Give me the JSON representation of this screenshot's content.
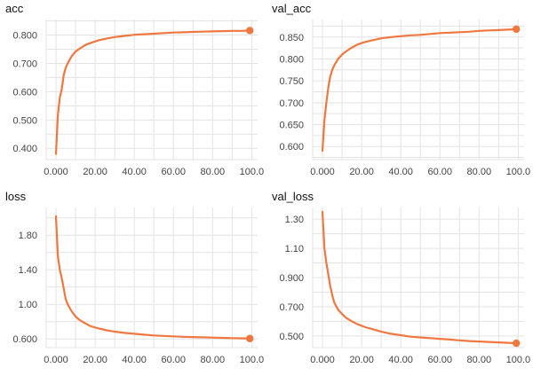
{
  "chart_data": [
    {
      "type": "line",
      "title": "acc",
      "xlabel": "",
      "ylabel": "",
      "xlim": [
        -5,
        103
      ],
      "ylim": [
        0.36,
        0.855
      ],
      "xticks": [
        0,
        20,
        40,
        60,
        80,
        100
      ],
      "xtick_labels": [
        "0.000",
        "20.00",
        "40.00",
        "60.00",
        "80.00",
        "100.0"
      ],
      "yticks": [
        0.4,
        0.5,
        0.6,
        0.7,
        0.8
      ],
      "ytick_labels": [
        "0.400",
        "0.500",
        "0.600",
        "0.700",
        "0.800"
      ],
      "grid": true,
      "color": "#f0773f",
      "series": [
        {
          "x": [
            0,
            1,
            2,
            3,
            4,
            5,
            6,
            8,
            10,
            12,
            15,
            18,
            22,
            26,
            30,
            35,
            40,
            45,
            50,
            55,
            60,
            65,
            70,
            75,
            80,
            85,
            90,
            95,
            99
          ],
          "y": [
            0.38,
            0.52,
            0.58,
            0.61,
            0.66,
            0.685,
            0.7,
            0.725,
            0.742,
            0.752,
            0.765,
            0.773,
            0.782,
            0.788,
            0.793,
            0.797,
            0.801,
            0.803,
            0.805,
            0.807,
            0.809,
            0.81,
            0.811,
            0.812,
            0.813,
            0.814,
            0.815,
            0.815,
            0.816
          ]
        }
      ]
    },
    {
      "type": "line",
      "title": "val_acc",
      "xlabel": "",
      "ylabel": "",
      "xlim": [
        -5,
        103
      ],
      "ylim": [
        0.57,
        0.89
      ],
      "xticks": [
        0,
        20,
        40,
        60,
        80,
        100
      ],
      "xtick_labels": [
        "0.000",
        "20.00",
        "40.00",
        "60.00",
        "80.00",
        "100.0"
      ],
      "yticks": [
        0.6,
        0.65,
        0.7,
        0.75,
        0.8,
        0.85
      ],
      "ytick_labels": [
        "0.600",
        "0.650",
        "0.700",
        "0.750",
        "0.800",
        "0.850"
      ],
      "grid": true,
      "color": "#f0773f",
      "series": [
        {
          "x": [
            0,
            1,
            2,
            3,
            4,
            5,
            6,
            8,
            10,
            12,
            15,
            18,
            22,
            26,
            30,
            35,
            40,
            45,
            50,
            55,
            60,
            65,
            70,
            75,
            80,
            85,
            90,
            95,
            99
          ],
          "y": [
            0.59,
            0.66,
            0.7,
            0.735,
            0.76,
            0.775,
            0.785,
            0.8,
            0.81,
            0.817,
            0.826,
            0.833,
            0.839,
            0.843,
            0.847,
            0.85,
            0.852,
            0.854,
            0.855,
            0.857,
            0.859,
            0.86,
            0.861,
            0.862,
            0.864,
            0.865,
            0.866,
            0.867,
            0.868
          ]
        }
      ]
    },
    {
      "type": "line",
      "title": "loss",
      "xlabel": "",
      "ylabel": "",
      "xlim": [
        -5,
        103
      ],
      "ylim": [
        0.5,
        2.12
      ],
      "xticks": [
        0,
        20,
        40,
        60,
        80,
        100
      ],
      "xtick_labels": [
        "0.000",
        "20.00",
        "40.00",
        "60.00",
        "80.00",
        "100.0"
      ],
      "yticks": [
        0.6,
        1.0,
        1.4,
        1.8
      ],
      "ytick_labels": [
        "0.600",
        "1.00",
        "1.40",
        "1.80"
      ],
      "grid": true,
      "color": "#f0773f",
      "series": [
        {
          "x": [
            0,
            1,
            2,
            3,
            4,
            5,
            6,
            8,
            10,
            12,
            15,
            18,
            22,
            26,
            30,
            35,
            40,
            45,
            50,
            55,
            60,
            65,
            70,
            75,
            80,
            85,
            90,
            95,
            99
          ],
          "y": [
            2.02,
            1.55,
            1.4,
            1.3,
            1.18,
            1.06,
            1.0,
            0.92,
            0.86,
            0.82,
            0.78,
            0.745,
            0.72,
            0.7,
            0.685,
            0.67,
            0.66,
            0.65,
            0.64,
            0.635,
            0.63,
            0.625,
            0.622,
            0.619,
            0.616,
            0.613,
            0.61,
            0.608,
            0.605
          ]
        }
      ]
    },
    {
      "type": "line",
      "title": "val_loss",
      "xlabel": "",
      "ylabel": "",
      "xlim": [
        -5,
        103
      ],
      "ylim": [
        0.42,
        1.38
      ],
      "xticks": [
        0,
        20,
        40,
        60,
        80,
        100
      ],
      "xtick_labels": [
        "0.000",
        "20.00",
        "40.00",
        "60.00",
        "80.00",
        "100.0"
      ],
      "yticks": [
        0.5,
        0.7,
        0.9,
        1.1,
        1.3
      ],
      "ytick_labels": [
        "0.500",
        "0.700",
        "0.900",
        "1.10",
        "1.30"
      ],
      "grid": true,
      "color": "#f0773f",
      "series": [
        {
          "x": [
            0,
            1,
            2,
            3,
            4,
            5,
            6,
            8,
            10,
            12,
            15,
            18,
            22,
            26,
            30,
            35,
            40,
            45,
            50,
            55,
            60,
            65,
            70,
            75,
            80,
            85,
            90,
            95,
            99
          ],
          "y": [
            1.35,
            1.1,
            1.0,
            0.92,
            0.84,
            0.78,
            0.73,
            0.68,
            0.65,
            0.625,
            0.6,
            0.58,
            0.56,
            0.545,
            0.53,
            0.515,
            0.505,
            0.495,
            0.49,
            0.485,
            0.48,
            0.475,
            0.47,
            0.465,
            0.462,
            0.459,
            0.456,
            0.453,
            0.45
          ]
        }
      ]
    }
  ]
}
